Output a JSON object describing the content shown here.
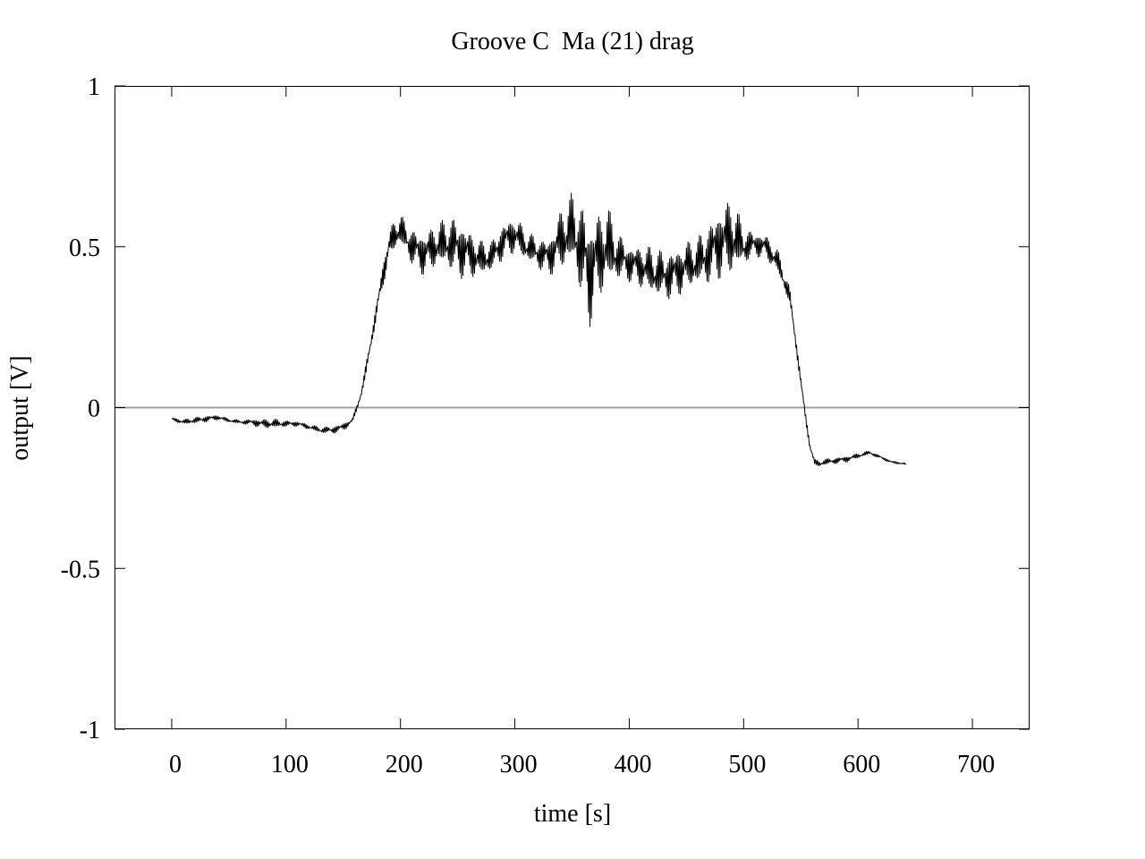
{
  "chart_data": {
    "type": "line",
    "title": "Groove C  Ma (21) drag",
    "xlabel": "time [s]",
    "ylabel": "output [V]",
    "xlim": [
      -50,
      750
    ],
    "ylim": [
      -1,
      1
    ],
    "xticks": [
      0,
      100,
      200,
      300,
      400,
      500,
      600,
      700
    ],
    "yticks": [
      -1,
      -0.5,
      0,
      0.5,
      1
    ],
    "xtick_labels": [
      "0",
      "100",
      "200",
      "300",
      "400",
      "500",
      "600",
      "700"
    ],
    "ytick_labels": [
      "-1",
      "-0.5",
      "0",
      "0.5",
      "1"
    ],
    "grid": false,
    "legend": "none",
    "zero_line": {
      "y": 0,
      "color": "#a0a0a0"
    },
    "series": [
      {
        "color": "#000000",
        "x": [
          0,
          10,
          20,
          30,
          40,
          50,
          60,
          70,
          80,
          90,
          100,
          110,
          120,
          130,
          140,
          150,
          158,
          162,
          166,
          170,
          175,
          180,
          185,
          190,
          195,
          200,
          210,
          220,
          230,
          240,
          250,
          260,
          270,
          280,
          290,
          300,
          310,
          320,
          330,
          340,
          350,
          360,
          365,
          370,
          380,
          390,
          400,
          410,
          420,
          430,
          440,
          450,
          460,
          470,
          480,
          490,
          500,
          510,
          520,
          530,
          540,
          545,
          550,
          555,
          558,
          562,
          566,
          570,
          580,
          590,
          600,
          610,
          620,
          630,
          642
        ],
        "y": [
          -0.035,
          -0.045,
          -0.04,
          -0.035,
          -0.03,
          -0.04,
          -0.045,
          -0.045,
          -0.05,
          -0.05,
          -0.05,
          -0.05,
          -0.06,
          -0.07,
          -0.07,
          -0.06,
          -0.04,
          0.0,
          0.05,
          0.12,
          0.22,
          0.32,
          0.42,
          0.5,
          0.54,
          0.55,
          0.5,
          0.48,
          0.5,
          0.51,
          0.5,
          0.48,
          0.46,
          0.47,
          0.52,
          0.54,
          0.5,
          0.48,
          0.47,
          0.52,
          0.55,
          0.48,
          0.42,
          0.46,
          0.5,
          0.47,
          0.45,
          0.44,
          0.42,
          0.41,
          0.42,
          0.44,
          0.45,
          0.48,
          0.52,
          0.53,
          0.5,
          0.51,
          0.5,
          0.45,
          0.35,
          0.22,
          0.08,
          -0.05,
          -0.12,
          -0.17,
          -0.175,
          -0.17,
          -0.165,
          -0.16,
          -0.15,
          -0.14,
          -0.155,
          -0.17,
          -0.175
        ],
        "noise_amplitude": [
          0.005,
          0.008,
          0.01,
          0.01,
          0.008,
          0.006,
          0.006,
          0.01,
          0.015,
          0.015,
          0.01,
          0.008,
          0.008,
          0.01,
          0.012,
          0.012,
          0.01,
          0.01,
          0.015,
          0.02,
          0.02,
          0.03,
          0.04,
          0.05,
          0.05,
          0.05,
          0.06,
          0.07,
          0.07,
          0.08,
          0.1,
          0.08,
          0.06,
          0.05,
          0.06,
          0.06,
          0.05,
          0.05,
          0.06,
          0.1,
          0.12,
          0.16,
          0.18,
          0.15,
          0.14,
          0.08,
          0.06,
          0.07,
          0.08,
          0.08,
          0.08,
          0.08,
          0.08,
          0.1,
          0.12,
          0.13,
          0.06,
          0.04,
          0.04,
          0.04,
          0.03,
          0.02,
          0.02,
          0.015,
          0.015,
          0.01,
          0.01,
          0.01,
          0.01,
          0.01,
          0.008,
          0.006,
          0.005,
          0.004,
          0.003
        ]
      }
    ]
  }
}
